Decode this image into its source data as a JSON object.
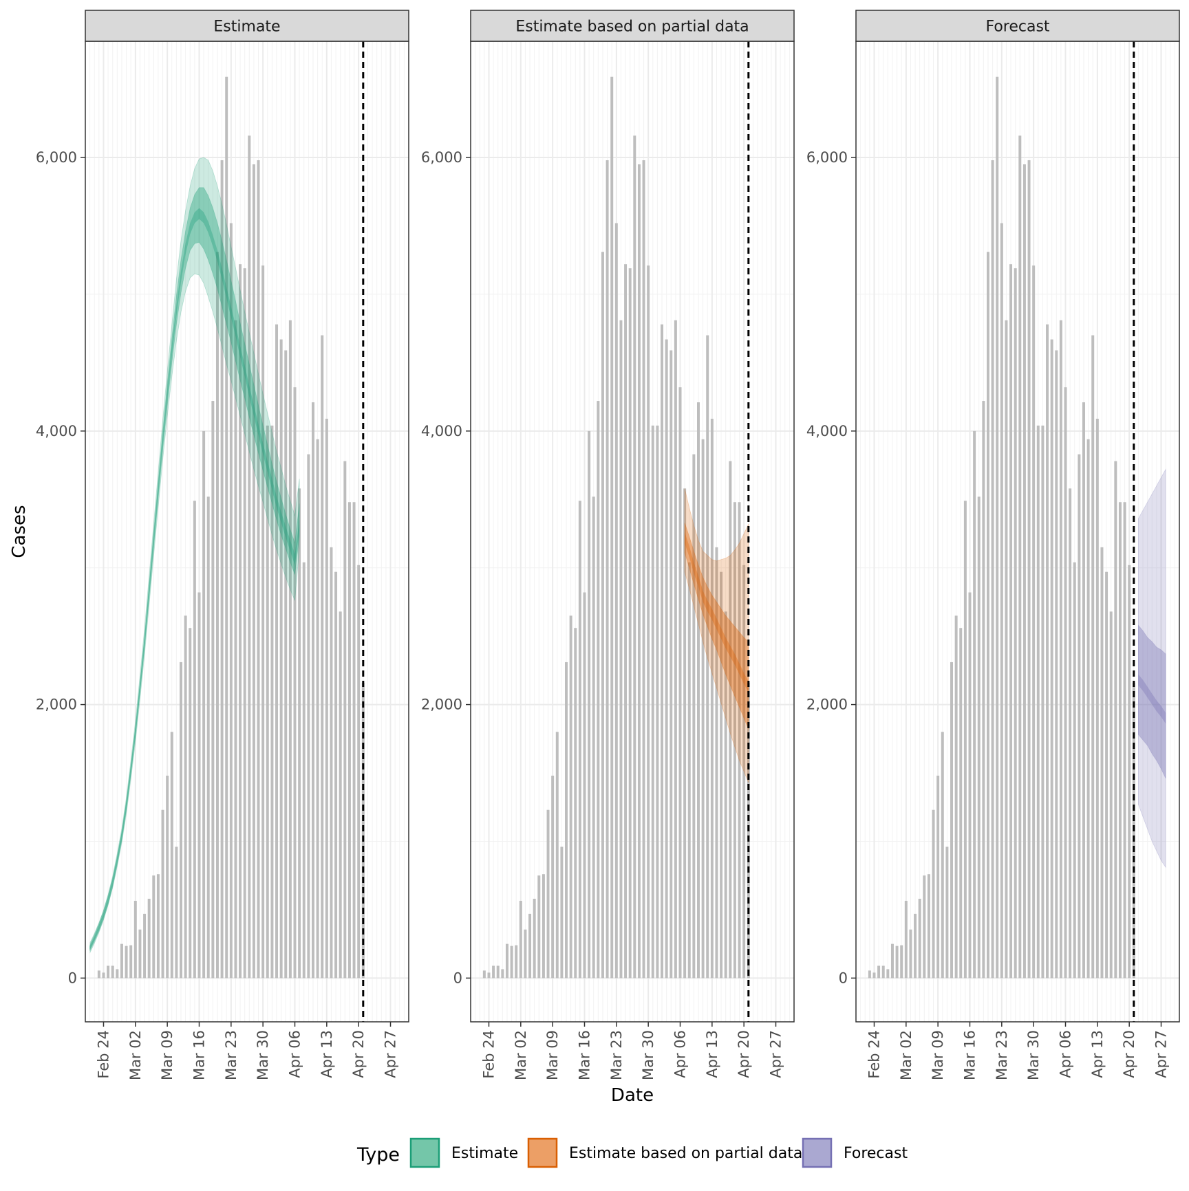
{
  "chart_data": {
    "type": "bar",
    "xlabel": "Date",
    "ylabel": "Cases",
    "y_ticks": [
      0,
      2000,
      4000,
      6000
    ],
    "y_tick_labels": [
      "0",
      "2,000",
      "4,000",
      "6,000"
    ],
    "ylim": [
      -320,
      6850
    ],
    "x_ticks": [
      "Feb 24",
      "Mar 02",
      "Mar 09",
      "Mar 16",
      "Mar 23",
      "Mar 30",
      "Apr 06",
      "Apr 13",
      "Apr 20",
      "Apr 27"
    ],
    "x_tick_day_index": [
      0,
      7,
      14,
      21,
      28,
      35,
      42,
      49,
      56,
      63
    ],
    "xlim_day_index": [
      -4,
      67
    ],
    "start_date": "Feb 24",
    "vline_day_index": 57,
    "panels": [
      {
        "title": "Estimate",
        "type": "Estimate"
      },
      {
        "title": "Estimate based on partial data",
        "type": "Estimate based on partial data"
      },
      {
        "title": "Forecast",
        "type": "Forecast"
      }
    ],
    "cases": {
      "day_index": [
        -1,
        0,
        1,
        2,
        3,
        4,
        5,
        6,
        7,
        8,
        9,
        10,
        11,
        12,
        13,
        14,
        15,
        16,
        17,
        18,
        19,
        20,
        21,
        22,
        23,
        24,
        25,
        26,
        27,
        28,
        29,
        30,
        31,
        32,
        33,
        34,
        35,
        36,
        37,
        38,
        39,
        40,
        41,
        42,
        43,
        44,
        45,
        46,
        47,
        48,
        49,
        50,
        51,
        52,
        53,
        54,
        55,
        56,
        57
      ],
      "values": [
        55,
        40,
        90,
        90,
        65,
        250,
        235,
        240,
        565,
        355,
        470,
        580,
        750,
        760,
        1230,
        1480,
        1800,
        960,
        2310,
        2650,
        2560,
        3490,
        2820,
        4000,
        3520,
        4220,
        5310,
        5980,
        6590,
        5520,
        4810,
        5220,
        5190,
        6160,
        5950,
        5980,
        5210,
        4040,
        4040,
        4780,
        4670,
        4590,
        4810,
        4320,
        3580,
        3040,
        3830,
        4210,
        3940,
        4700,
        4090,
        3150,
        2970,
        2680,
        3780,
        3480,
        3480,
        3020,
        2160
      ]
    },
    "estimate": {
      "color": "#1b9e77",
      "day_index": [
        -3,
        -2,
        -1,
        0,
        1,
        2,
        3,
        4,
        5,
        6,
        7,
        8,
        9,
        10,
        11,
        12,
        13,
        14,
        15,
        16,
        17,
        18,
        19,
        20,
        21,
        22,
        23,
        24,
        25,
        26,
        27,
        28,
        29,
        30,
        31,
        32,
        33,
        34,
        35,
        36,
        37,
        38,
        39,
        40,
        41,
        42,
        43
      ],
      "median": [
        220,
        290,
        370,
        460,
        570,
        700,
        860,
        1040,
        1260,
        1520,
        1800,
        2120,
        2460,
        2830,
        3200,
        3570,
        3930,
        4270,
        4590,
        4880,
        5130,
        5330,
        5480,
        5560,
        5590,
        5560,
        5490,
        5390,
        5280,
        5150,
        5010,
        4870,
        4730,
        4580,
        4440,
        4290,
        4150,
        4010,
        3870,
        3740,
        3610,
        3480,
        3370,
        3260,
        3160,
        3060,
        3310
      ],
      "ci90": [
        [
          200,
          240
        ],
        [
          270,
          315
        ],
        [
          345,
          400
        ],
        [
          430,
          495
        ],
        [
          535,
          610
        ],
        [
          660,
          745
        ],
        [
          815,
          910
        ],
        [
          990,
          1095
        ],
        [
          1200,
          1320
        ],
        [
          1455,
          1590
        ],
        [
          1725,
          1880
        ],
        [
          2035,
          2210
        ],
        [
          2365,
          2560
        ],
        [
          2725,
          2940
        ],
        [
          3085,
          3320
        ],
        [
          3440,
          3700
        ],
        [
          3790,
          4080
        ],
        [
          4110,
          4440
        ],
        [
          4400,
          4780
        ],
        [
          4660,
          5110
        ],
        [
          4870,
          5390
        ],
        [
          5020,
          5610
        ],
        [
          5120,
          5790
        ],
        [
          5150,
          5920
        ],
        [
          5140,
          5990
        ],
        [
          5080,
          6000
        ],
        [
          4980,
          5980
        ],
        [
          4870,
          5900
        ],
        [
          4750,
          5790
        ],
        [
          4620,
          5660
        ],
        [
          4490,
          5510
        ],
        [
          4370,
          5350
        ],
        [
          4240,
          5190
        ],
        [
          4110,
          5030
        ],
        [
          3980,
          4870
        ],
        [
          3850,
          4720
        ],
        [
          3720,
          4570
        ],
        [
          3600,
          4420
        ],
        [
          3480,
          4270
        ],
        [
          3360,
          4130
        ],
        [
          3240,
          3990
        ],
        [
          3130,
          3850
        ],
        [
          3030,
          3730
        ],
        [
          2930,
          3600
        ],
        [
          2840,
          3490
        ],
        [
          2760,
          3380
        ],
        [
          3140,
          3650
        ]
      ],
      "ci50": [
        [
          210,
          230
        ],
        [
          280,
          300
        ],
        [
          355,
          385
        ],
        [
          445,
          475
        ],
        [
          550,
          590
        ],
        [
          680,
          720
        ],
        [
          840,
          880
        ],
        [
          1015,
          1065
        ],
        [
          1230,
          1290
        ],
        [
          1490,
          1555
        ],
        [
          1765,
          1835
        ],
        [
          2080,
          2160
        ],
        [
          2410,
          2500
        ],
        [
          2775,
          2880
        ],
        [
          3140,
          3260
        ],
        [
          3505,
          3630
        ],
        [
          3860,
          4000
        ],
        [
          4190,
          4350
        ],
        [
          4500,
          4680
        ],
        [
          4780,
          4990
        ],
        [
          5010,
          5250
        ],
        [
          5190,
          5460
        ],
        [
          5320,
          5630
        ],
        [
          5370,
          5730
        ],
        [
          5380,
          5780
        ],
        [
          5330,
          5780
        ],
        [
          5250,
          5720
        ],
        [
          5150,
          5630
        ],
        [
          5040,
          5520
        ],
        [
          4910,
          5390
        ],
        [
          4780,
          5250
        ],
        [
          4650,
          5100
        ],
        [
          4510,
          4950
        ],
        [
          4370,
          4790
        ],
        [
          4240,
          4640
        ],
        [
          4100,
          4490
        ],
        [
          3970,
          4340
        ],
        [
          3840,
          4190
        ],
        [
          3710,
          4040
        ],
        [
          3590,
          3900
        ],
        [
          3470,
          3760
        ],
        [
          3350,
          3630
        ],
        [
          3240,
          3510
        ],
        [
          3140,
          3390
        ],
        [
          3040,
          3280
        ],
        [
          2950,
          3180
        ],
        [
          3230,
          3470
        ]
      ]
    },
    "partial": {
      "color": "#d95f02",
      "day_index": [
        43,
        44,
        45,
        46,
        47,
        48,
        49,
        50,
        51,
        52,
        53,
        54,
        55,
        56,
        57
      ],
      "median": [
        3220,
        3120,
        3000,
        2900,
        2790,
        2720,
        2660,
        2590,
        2520,
        2450,
        2390,
        2330,
        2260,
        2190,
        2130
      ],
      "ci90": [
        [
          2970,
          3580
        ],
        [
          2850,
          3440
        ],
        [
          2720,
          3310
        ],
        [
          2590,
          3200
        ],
        [
          2460,
          3120
        ],
        [
          2340,
          3090
        ],
        [
          2230,
          3060
        ],
        [
          2120,
          3050
        ],
        [
          2010,
          3060
        ],
        [
          1900,
          3070
        ],
        [
          1790,
          3090
        ],
        [
          1690,
          3130
        ],
        [
          1590,
          3180
        ],
        [
          1510,
          3250
        ],
        [
          1430,
          3320
        ]
      ],
      "ci50": [
        [
          3110,
          3330
        ],
        [
          3000,
          3230
        ],
        [
          2880,
          3120
        ],
        [
          2770,
          3020
        ],
        [
          2660,
          2930
        ],
        [
          2570,
          2860
        ],
        [
          2480,
          2800
        ],
        [
          2400,
          2750
        ],
        [
          2310,
          2700
        ],
        [
          2220,
          2650
        ],
        [
          2140,
          2610
        ],
        [
          2060,
          2570
        ],
        [
          1980,
          2530
        ],
        [
          1900,
          2490
        ],
        [
          1820,
          2460
        ]
      ]
    },
    "forecast": {
      "color": "#7570b3",
      "day_index": [
        58,
        59,
        60,
        61,
        62,
        63,
        64
      ],
      "median": [
        2180,
        2140,
        2090,
        2040,
        1990,
        1950,
        1900
      ],
      "ci90": [
        [
          1270,
          3360
        ],
        [
          1180,
          3420
        ],
        [
          1090,
          3480
        ],
        [
          1000,
          3540
        ],
        [
          930,
          3600
        ],
        [
          860,
          3660
        ],
        [
          810,
          3720
        ]
      ],
      "ci50": [
        [
          1780,
          2580
        ],
        [
          1740,
          2540
        ],
        [
          1700,
          2490
        ],
        [
          1640,
          2460
        ],
        [
          1590,
          2420
        ],
        [
          1530,
          2400
        ],
        [
          1460,
          2370
        ]
      ]
    },
    "legend": {
      "title": "Type",
      "entries": [
        "Estimate",
        "Estimate based on partial data",
        "Forecast"
      ],
      "position": "bottom"
    }
  }
}
